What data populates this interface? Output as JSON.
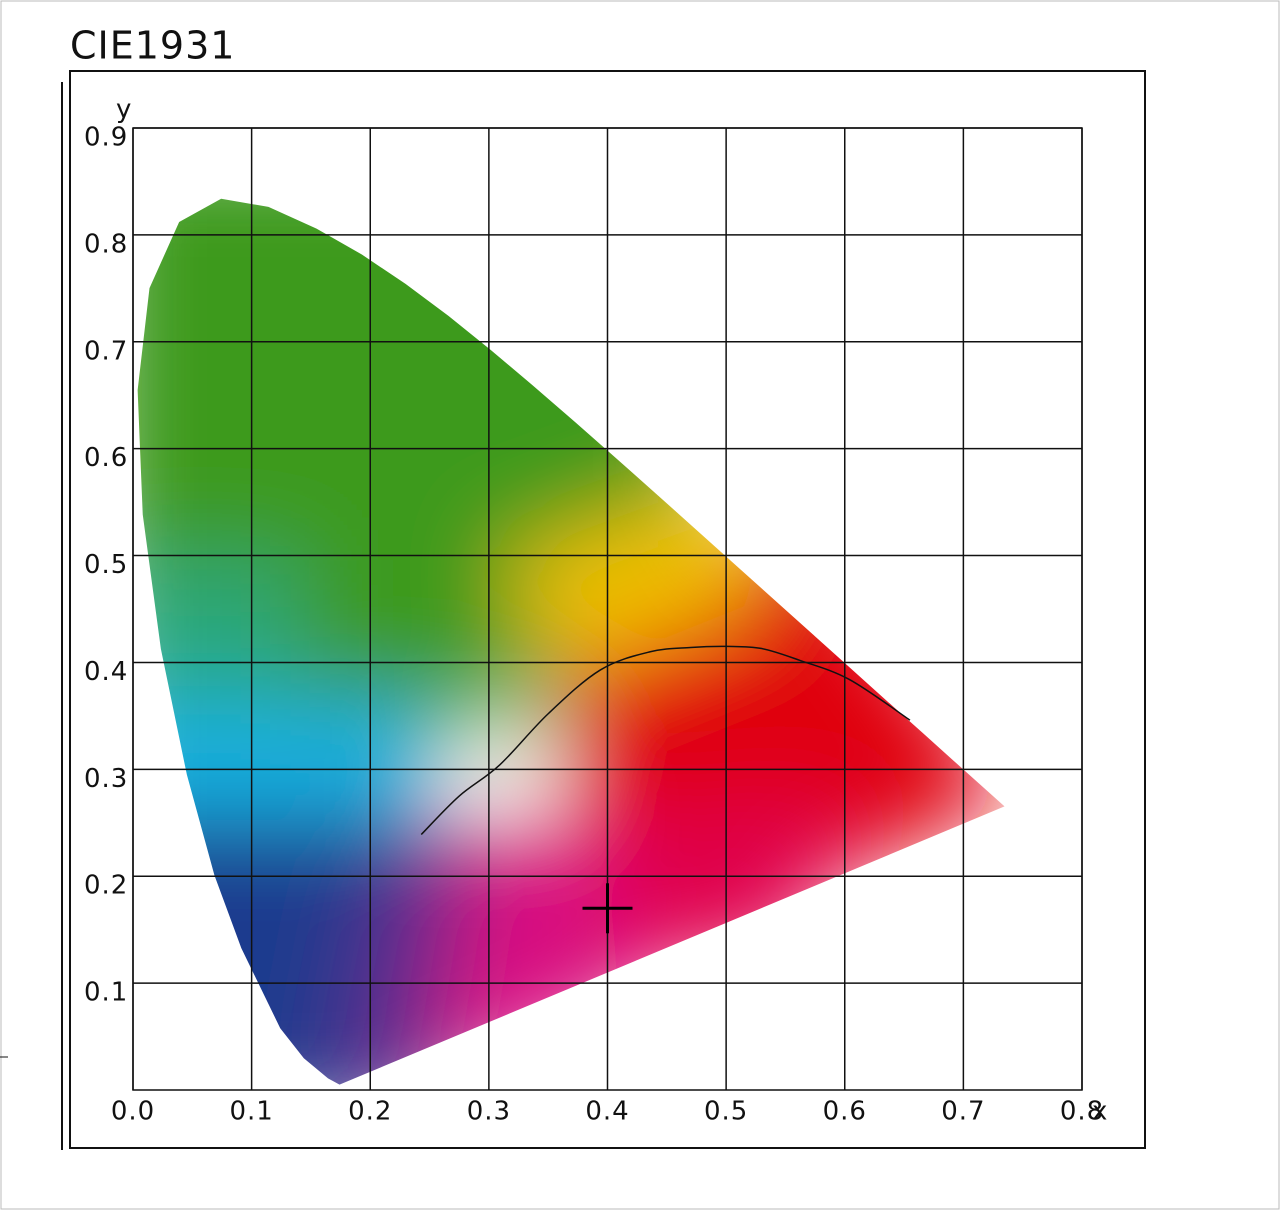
{
  "chart_data": {
    "type": "scatter",
    "title": "CIE1931",
    "x_label": "x",
    "y_label": "y",
    "xlim": [
      0,
      0.8
    ],
    "ylim": [
      0,
      0.9
    ],
    "xticks": [
      {
        "value": 0,
        "label": "0.0"
      },
      0.1,
      0.2,
      0.3,
      0.4,
      0.5,
      0.6,
      0.7,
      0.8
    ],
    "yticks": [
      0.1,
      0.2,
      0.3,
      0.4,
      0.5,
      0.6,
      0.7,
      0.8,
      0.9
    ],
    "grid": true,
    "spectral_locus": {
      "x": [
        0.1741,
        0.1644,
        0.144,
        0.1241,
        0.0913,
        0.0687,
        0.0454,
        0.0235,
        0.0082,
        0.0039,
        0.0139,
        0.0389,
        0.0743,
        0.1142,
        0.1547,
        0.1929,
        0.2296,
        0.2658,
        0.3016,
        0.3373,
        0.3731,
        0.4087,
        0.4441,
        0.4788,
        0.5125,
        0.5448,
        0.5752,
        0.6029,
        0.627,
        0.6482,
        0.6658,
        0.6915,
        0.7347
      ],
      "y": [
        0.005,
        0.0109,
        0.0297,
        0.0578,
        0.1327,
        0.2007,
        0.295,
        0.4127,
        0.5384,
        0.6548,
        0.7502,
        0.812,
        0.8338,
        0.8262,
        0.8059,
        0.7816,
        0.7543,
        0.7243,
        0.6923,
        0.6589,
        0.6245,
        0.5896,
        0.5547,
        0.5202,
        0.4866,
        0.4544,
        0.4242,
        0.3965,
        0.3725,
        0.3514,
        0.334,
        0.3083,
        0.2653
      ]
    },
    "planckian_locus": {
      "x": [
        0.243,
        0.275,
        0.309,
        0.35,
        0.394,
        0.436,
        0.47,
        0.501,
        0.53,
        0.562,
        0.604,
        0.655
      ],
      "y": [
        0.239,
        0.275,
        0.304,
        0.352,
        0.393,
        0.41,
        0.414,
        0.415,
        0.413,
        0.402,
        0.384,
        0.346
      ]
    },
    "point": {
      "x": 0.4,
      "y": 0.17,
      "color": "#000000"
    }
  }
}
